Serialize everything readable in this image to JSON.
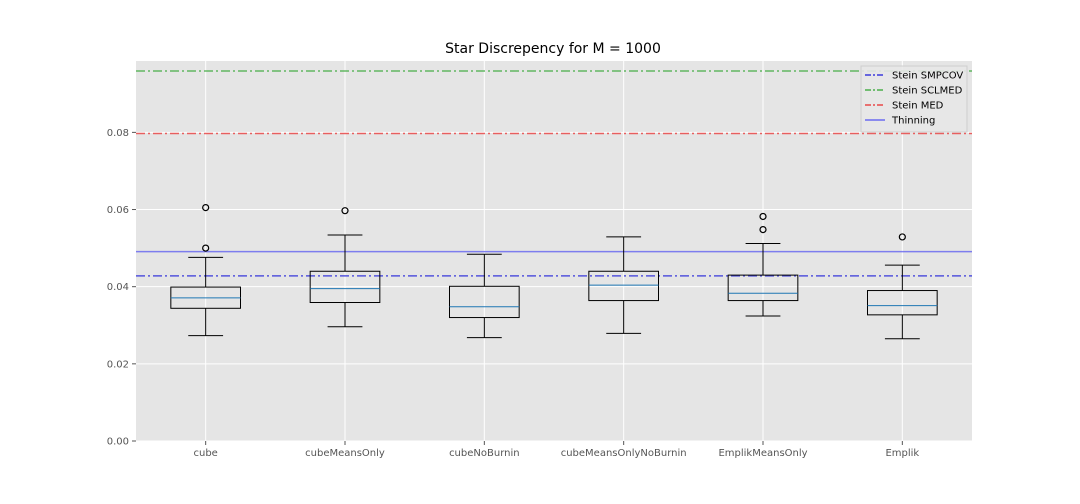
{
  "chart_data": {
    "type": "box",
    "title": "Star Discrepency for M = 1000",
    "xlabel": "",
    "ylabel": "",
    "categories": [
      "cube",
      "cubeMeansOnly",
      "cubeNoBurnin",
      "cubeMeansOnlyNoBurnin",
      "EmplikMeansOnly",
      "Emplik"
    ],
    "boxes": [
      {
        "whisker_low": 0.0273,
        "q1": 0.0344,
        "median": 0.0371,
        "q3": 0.0399,
        "whisker_high": 0.0476,
        "outliers": [
          0.05,
          0.0605
        ]
      },
      {
        "whisker_low": 0.0296,
        "q1": 0.0359,
        "median": 0.0395,
        "q3": 0.044,
        "whisker_high": 0.0534,
        "outliers": [
          0.0597
        ]
      },
      {
        "whisker_low": 0.0268,
        "q1": 0.032,
        "median": 0.0348,
        "q3": 0.0401,
        "whisker_high": 0.0484,
        "outliers": []
      },
      {
        "whisker_low": 0.0279,
        "q1": 0.0364,
        "median": 0.0404,
        "q3": 0.044,
        "whisker_high": 0.0529,
        "outliers": []
      },
      {
        "whisker_low": 0.0324,
        "q1": 0.0364,
        "median": 0.0383,
        "q3": 0.043,
        "whisker_high": 0.0512,
        "outliers": [
          0.0548,
          0.0582
        ]
      },
      {
        "whisker_low": 0.0265,
        "q1": 0.0327,
        "median": 0.0351,
        "q3": 0.039,
        "whisker_high": 0.0456,
        "outliers": [
          0.0529
        ]
      }
    ],
    "reference_lines": [
      {
        "name": "Stein SMPCOV",
        "value": 0.0428,
        "color": "#3b3bdb",
        "style": "dashdot"
      },
      {
        "name": "Stein SCLMED",
        "value": 0.0959,
        "color": "#4caf4c",
        "style": "dashdot"
      },
      {
        "name": "Stein MED",
        "value": 0.0797,
        "color": "#e84848",
        "style": "dashdot"
      },
      {
        "name": "Thinning",
        "value": 0.0491,
        "color": "#6b6bf0",
        "style": "solid"
      }
    ],
    "ylim": [
      0,
      0.0985
    ],
    "yticks": [
      0.0,
      0.02,
      0.04,
      0.06,
      0.08
    ],
    "ytick_labels": [
      "0.00",
      "0.02",
      "0.04",
      "0.06",
      "0.08"
    ],
    "grid": true,
    "legend_position": "top-right",
    "colors": {
      "background": "#e5e5e5",
      "grid": "#ffffff",
      "box": "#000000",
      "median": "#1f77b4"
    }
  }
}
